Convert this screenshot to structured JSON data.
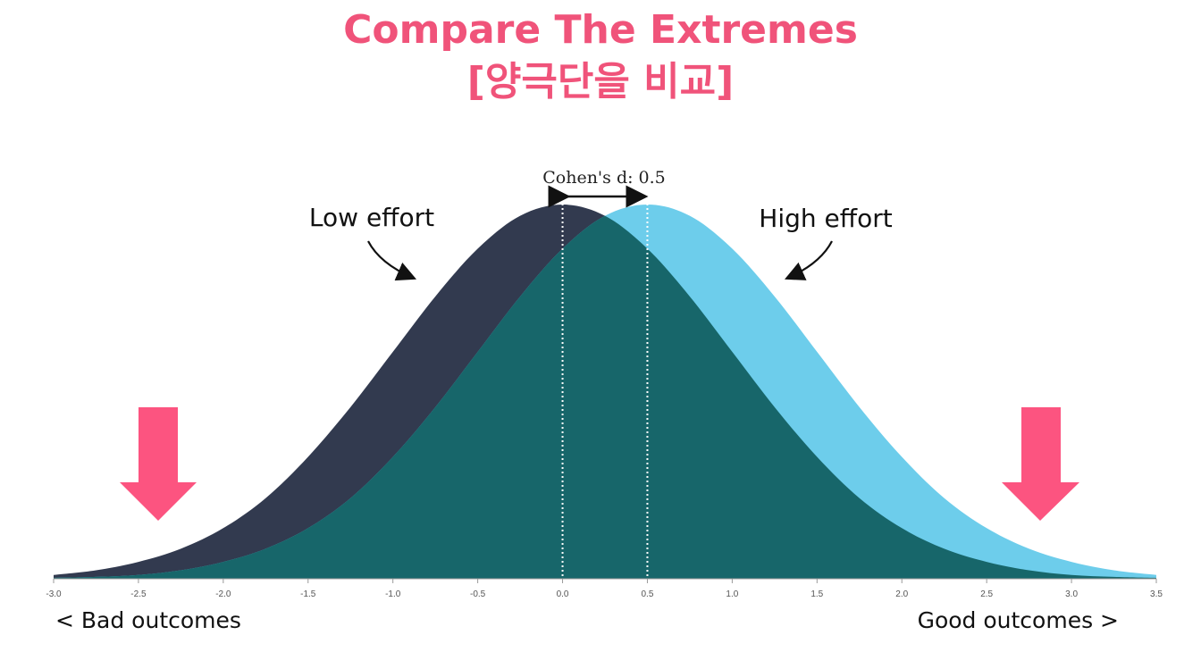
{
  "chart_data": {
    "type": "area",
    "title": "Compare The Extremes",
    "subtitle": "[양극단을 비교]",
    "annotations": [
      "Cohen's d: 0.5",
      "Low effort",
      "High effort"
    ],
    "x_left_label": "< Bad outcomes",
    "x_right_label": "Good outcomes >",
    "x": [
      -3,
      -2.75,
      -2.5,
      -2.25,
      -2,
      -1.75,
      -1.5,
      -1.25,
      -1,
      -0.75,
      -0.5,
      -0.25,
      0,
      0.25,
      0.5,
      0.75,
      1,
      1.25,
      1.5,
      1.75,
      2,
      2.25,
      2.5,
      2.75,
      3,
      3.25,
      3.5
    ],
    "series": [
      {
        "name": "Low effort",
        "color": "#323a4f",
        "values": [
          0.004,
          0.009,
          0.018,
          0.032,
          0.054,
          0.086,
          0.13,
          0.183,
          0.242,
          0.301,
          0.352,
          0.387,
          0.399,
          0.387,
          0.352,
          0.301,
          0.242,
          0.183,
          0.13,
          0.086,
          0.054,
          0.032,
          0.018,
          0.009,
          0.004,
          0.002,
          0.001
        ]
      },
      {
        "name": "High effort",
        "color": "#6dcdeb",
        "values": [
          0.001,
          0.002,
          0.004,
          0.009,
          0.018,
          0.032,
          0.054,
          0.086,
          0.13,
          0.183,
          0.242,
          0.301,
          0.352,
          0.387,
          0.399,
          0.387,
          0.352,
          0.301,
          0.242,
          0.183,
          0.13,
          0.086,
          0.054,
          0.032,
          0.018,
          0.009,
          0.004
        ]
      }
    ],
    "overlap_color": "#17666a",
    "vlines": [
      0,
      0.5
    ],
    "xlim": [
      -3.0,
      3.5
    ],
    "ylim": [
      0,
      0.4
    ],
    "xticks": [
      {
        "value": -3,
        "label": "-3.0"
      },
      {
        "value": -2.5,
        "label": "-2.5"
      },
      {
        "value": -2,
        "label": "-2.0"
      },
      {
        "value": -1.5,
        "label": "-1.5"
      },
      {
        "value": -1,
        "label": "-1.0"
      },
      {
        "value": -0.5,
        "label": "-0.5"
      },
      {
        "value": 0,
        "label": "0.0"
      },
      {
        "value": 0.5,
        "label": "0.5"
      },
      {
        "value": 1,
        "label": "1.0"
      },
      {
        "value": 1.5,
        "label": "1.5"
      },
      {
        "value": 2,
        "label": "2.0"
      },
      {
        "value": 2.5,
        "label": "2.5"
      },
      {
        "value": 3,
        "label": "3.0"
      },
      {
        "value": 3.5,
        "label": "3.5"
      }
    ]
  }
}
